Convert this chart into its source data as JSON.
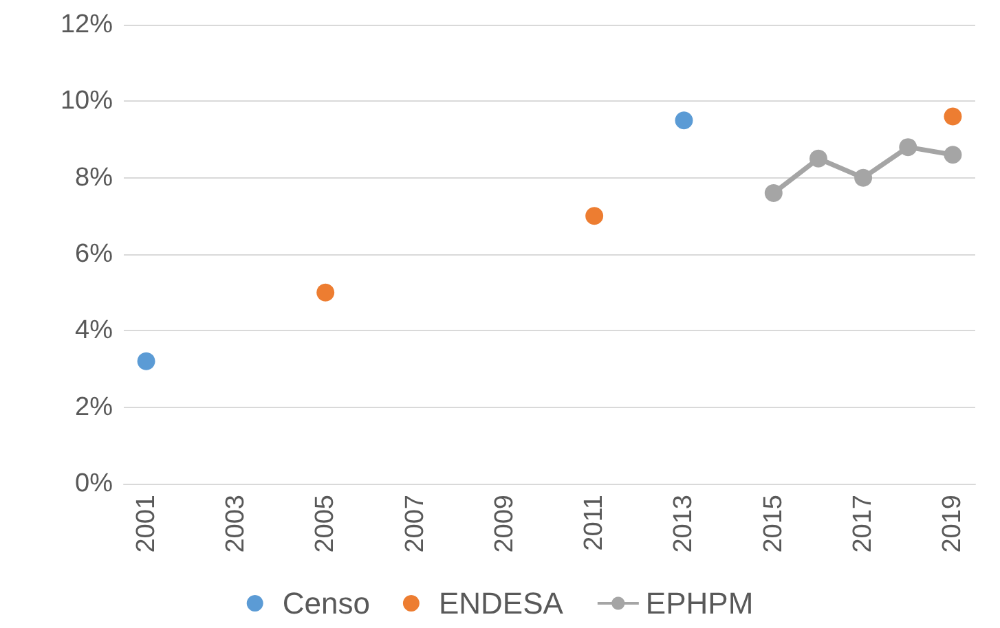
{
  "chart_data": {
    "type": "line",
    "series": [
      {
        "name": "Censo",
        "type": "scatter",
        "color": "#5b9bd5",
        "x": [
          2001,
          2013
        ],
        "values": [
          3.2,
          9.5
        ]
      },
      {
        "name": "ENDESA",
        "type": "scatter",
        "color": "#ed7d31",
        "x": [
          2005,
          2011,
          2019
        ],
        "values": [
          5.0,
          7.0,
          9.6
        ]
      },
      {
        "name": "EPHPM",
        "color": "#a5a5a5",
        "x": [
          2015,
          2016,
          2017,
          2018,
          2019
        ],
        "values": [
          7.6,
          8.5,
          8.0,
          8.8,
          8.6
        ]
      }
    ],
    "xlim": [
      2000.5,
      2019.5
    ],
    "xticks": [
      2001,
      2003,
      2005,
      2007,
      2009,
      2011,
      2013,
      2015,
      2017,
      2019
    ],
    "ylim": [
      0,
      12
    ],
    "yticks": [
      {
        "value": 0,
        "label": "0%"
      },
      {
        "value": 2,
        "label": "2%"
      },
      {
        "value": 4,
        "label": "4%"
      },
      {
        "value": 6,
        "label": "6%"
      },
      {
        "value": 8,
        "label": "8%"
      },
      {
        "value": 10,
        "label": "10%"
      },
      {
        "value": 12,
        "label": "12%"
      }
    ],
    "grid": "y",
    "legend": "bottom",
    "marker": "circle",
    "line_style": "solid"
  }
}
